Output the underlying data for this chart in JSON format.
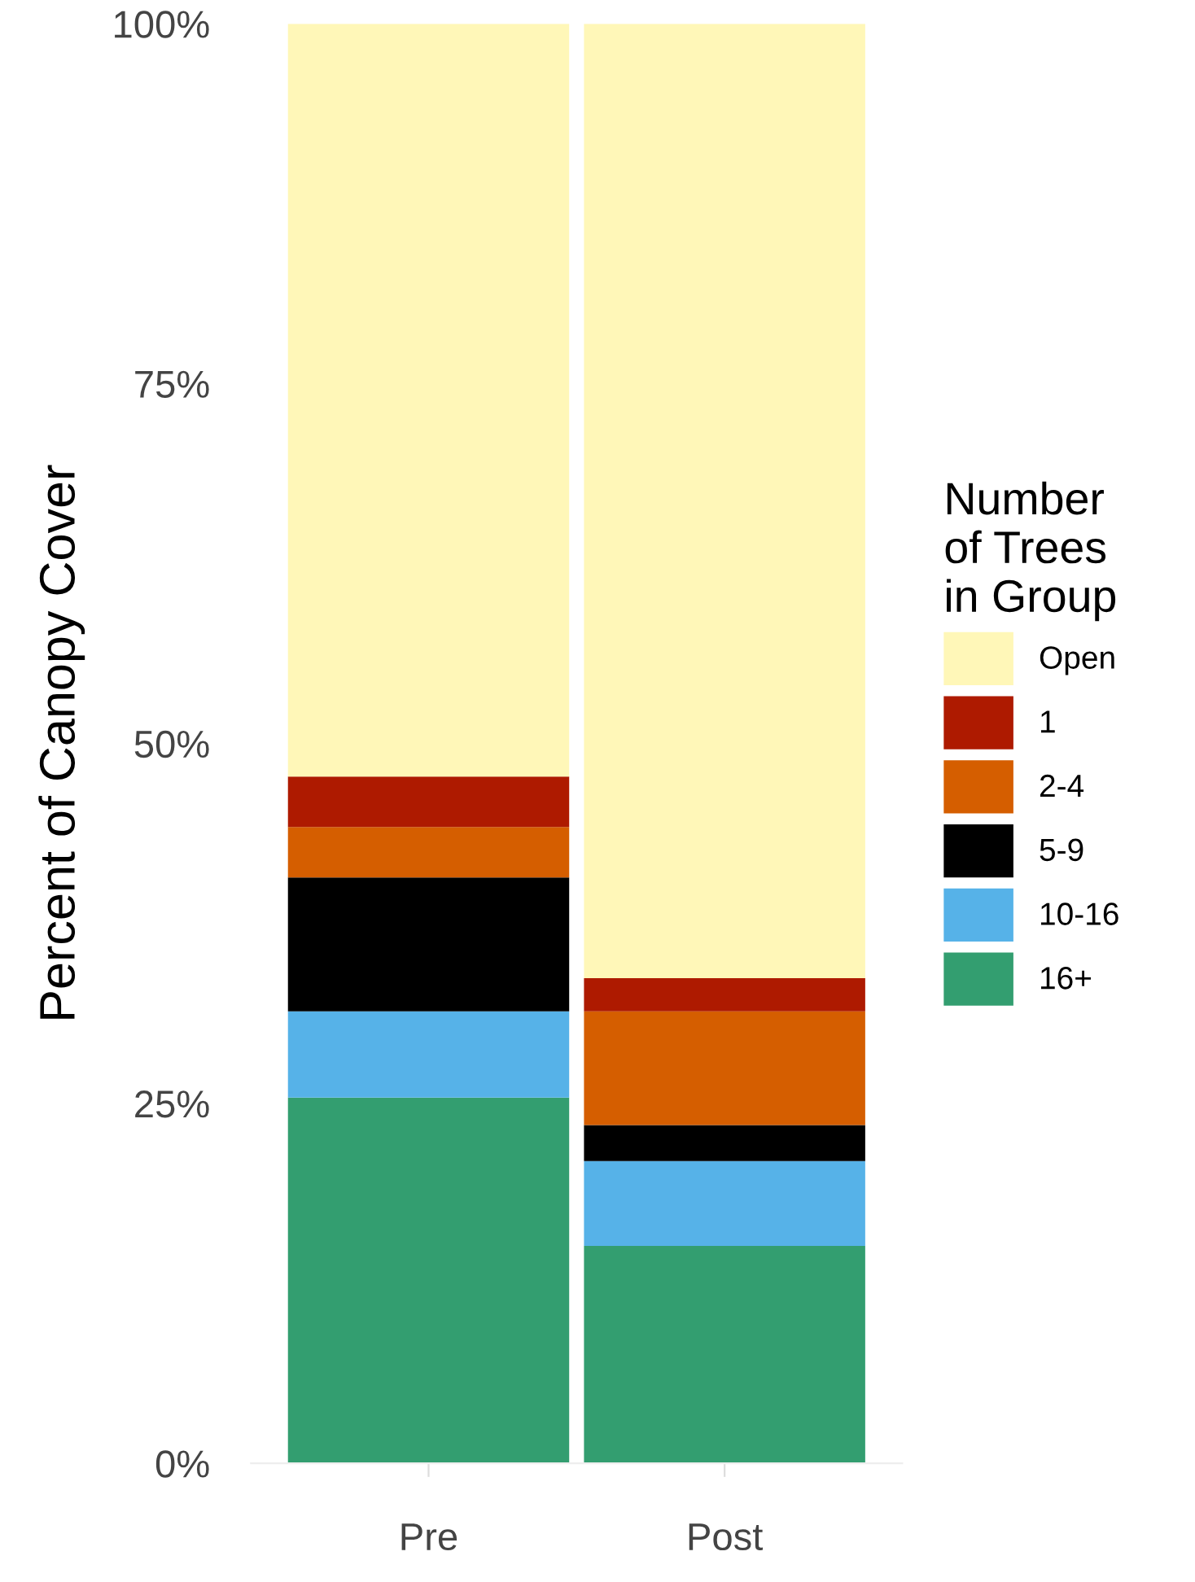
{
  "chart_data": {
    "type": "bar",
    "stacked": true,
    "ylabel": "Percent of Canopy Cover",
    "legend_title": "Number\nof Trees\nin Group",
    "categories": [
      "Pre",
      "Post"
    ],
    "series": [
      {
        "name": "16+",
        "color": "#339e70",
        "values": [
          25.4,
          15.1
        ]
      },
      {
        "name": "10-16",
        "color": "#56b2e8",
        "values": [
          6.0,
          5.9
        ]
      },
      {
        "name": "5-9",
        "color": "#000000",
        "values": [
          9.3,
          2.5
        ]
      },
      {
        "name": "2-4",
        "color": "#d55e00",
        "values": [
          3.5,
          7.9
        ]
      },
      {
        "name": "1",
        "color": "#ae1a00",
        "values": [
          3.5,
          2.3
        ]
      },
      {
        "name": "Open",
        "color": "#fff7b8",
        "values": [
          52.3,
          66.3
        ]
      }
    ],
    "ylim": [
      0,
      100
    ],
    "yticks": [
      {
        "value": 0,
        "label": "0%"
      },
      {
        "value": 25,
        "label": "25%"
      },
      {
        "value": 50,
        "label": "50%"
      },
      {
        "value": 75,
        "label": "75%"
      },
      {
        "value": 100,
        "label": "100%"
      }
    ],
    "legend": "right",
    "grid": false
  }
}
